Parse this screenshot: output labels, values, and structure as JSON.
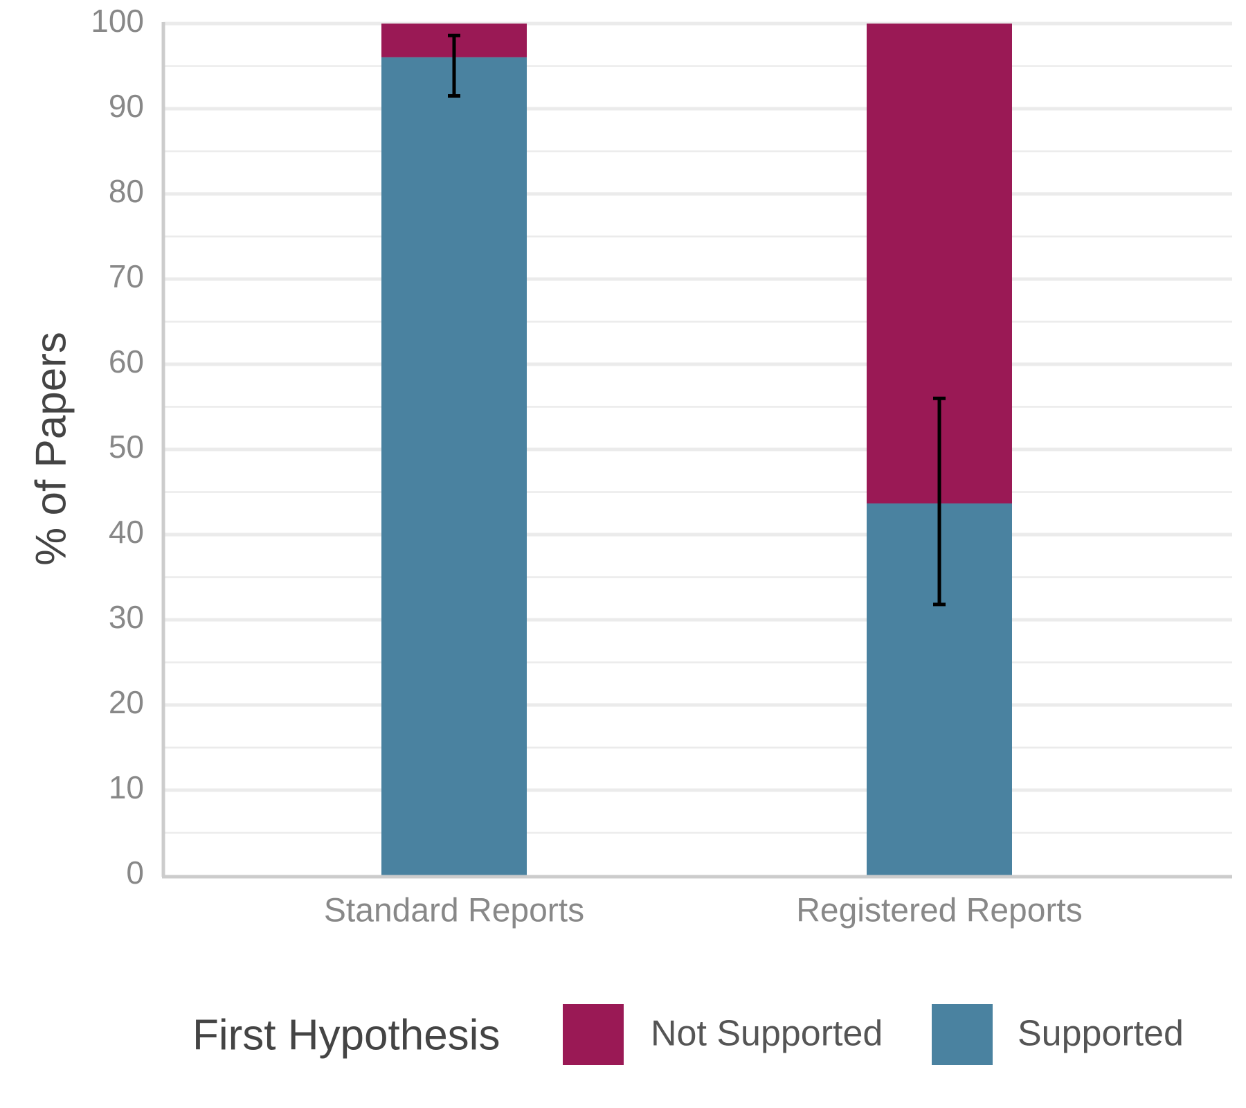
{
  "chart_data": {
    "type": "bar",
    "stacked": true,
    "categories": [
      "Standard Reports",
      "Registered Reports"
    ],
    "series": [
      {
        "name": "Supported",
        "values": [
          96.05,
          43.66
        ],
        "color": "#4a82a0"
      },
      {
        "name": "Not Supported",
        "values": [
          3.95,
          56.34
        ],
        "color": "#9a1955"
      }
    ],
    "error_bars": [
      {
        "category": "Standard Reports",
        "low": 91.5,
        "high": 98.6
      },
      {
        "category": "Registered Reports",
        "low": 31.8,
        "high": 56.0
      }
    ],
    "ylabel": "% of Papers",
    "xlabel": "",
    "ylim": [
      0,
      100
    ],
    "yticks": [
      0,
      10,
      20,
      30,
      40,
      50,
      60,
      70,
      80,
      90,
      100
    ],
    "grid": true,
    "legend": {
      "title": "First Hypothesis",
      "position": "bottom",
      "items": [
        {
          "label": "Not Supported",
          "color": "#9a1955"
        },
        {
          "label": "Supported",
          "color": "#4a82a0"
        }
      ]
    }
  }
}
